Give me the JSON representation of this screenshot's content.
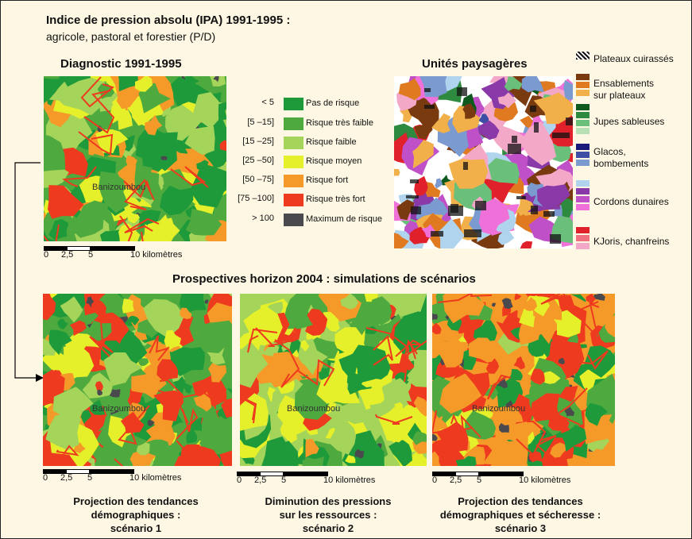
{
  "header": {
    "title": "Indice de pression absolu (IPA) 1991-1995 :",
    "subtitle": "agricole, pastoral et forestier (P/D)"
  },
  "diagnostic": {
    "title": "Diagnostic 1991-1995",
    "city": "Banizoumbou"
  },
  "scale": {
    "labels": [
      "0",
      "2,5",
      "5",
      "10 kilomètres"
    ]
  },
  "risk_legend": [
    {
      "range": "< 5",
      "label": "Pas de risque",
      "color": "#1e9a3a"
    },
    {
      "range": "[5 –15]",
      "label": "Risque très faible",
      "color": "#4eaa3e"
    },
    {
      "range": "[15 –25]",
      "label": "Risque faible",
      "color": "#a4d45a"
    },
    {
      "range": "[25 –50]",
      "label": "Risque moyen",
      "color": "#e6f02a"
    },
    {
      "range": "[50 –75]",
      "label": "Risque fort",
      "color": "#f59a28"
    },
    {
      "range": "[75 –100]",
      "label": "Risque très fort",
      "color": "#ee3a1e"
    },
    {
      "range": "> 100",
      "label": "Maximum de risque",
      "color": "#4a4a4e"
    }
  ],
  "landscape": {
    "title": "Unités paysagères",
    "units": [
      {
        "label": "Plateaux cuirassés",
        "swatches": [
          "#111111"
        ]
      },
      {
        "label": "Ensablements\nsur plateaux",
        "swatches": [
          "#7a3a10",
          "#e07a20",
          "#f2b04a"
        ]
      },
      {
        "label": "Jupes sableuses",
        "swatches": [
          "#0e5a1e",
          "#2e8a3e",
          "#6ac07a",
          "#b8e0b4"
        ]
      },
      {
        "label": "Glacos,\nbombements",
        "swatches": [
          "#1a1a7a",
          "#3e4ea4",
          "#7a9ad0"
        ]
      },
      {
        "label": "Cordons dunaires",
        "swatches": [
          "#b0d4ee",
          "#8a3aa8",
          "#c050c8",
          "#ee70d8"
        ]
      },
      {
        "label": "KJoris, chanfreins",
        "swatches": [
          "#e0202a",
          "#f07080",
          "#f4a8c8"
        ]
      }
    ]
  },
  "prospective": {
    "title": "Prospectives horizon 2004 : simulations de scénarios",
    "scenarios": [
      {
        "caption": "Projection des tendances\ndémographiques :\nscénario 1",
        "city": "Banizoumbou"
      },
      {
        "caption": "Diminution des pressions\nsur les ressources :\nscénario 2",
        "city": "Banizoumbou"
      },
      {
        "caption": "Projection des tendances\ndémographiques et sécheresse :\nscénario  3",
        "city": "Banizoumbou"
      }
    ]
  },
  "colors": {
    "background": "#fdf7e3",
    "no_risk": "#1e9a3a",
    "very_low": "#4eaa3e",
    "low": "#a4d45a",
    "medium": "#e6f02a",
    "high": "#f59a28",
    "very_high": "#ee3a1e",
    "max": "#4a4a4e"
  }
}
